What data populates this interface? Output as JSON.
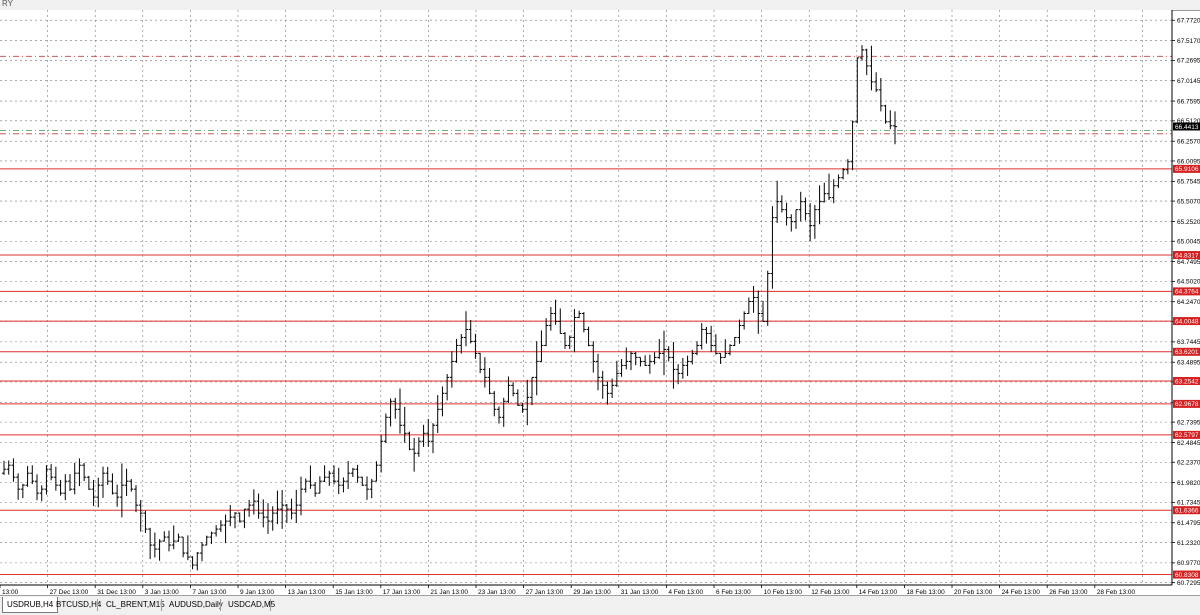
{
  "window": {
    "title_fragment": "RY"
  },
  "tabs": [
    {
      "label": "USDRUB,H4",
      "active": true
    },
    {
      "label": "BTCUSD,H4",
      "active": false
    },
    {
      "label": "CL_BRENT,M15",
      "active": false
    },
    {
      "label": "AUDUSD,Daily",
      "active": false
    },
    {
      "label": "USDCAD,M5",
      "active": false
    }
  ],
  "colors": {
    "level_line": "#e03030",
    "level_tag": "#d42020",
    "dashdot_red": "#c04040",
    "dashdot_green": "#60a060",
    "current_price_tag": "#000000",
    "bars": "#000000",
    "grid": "#777777"
  },
  "chart_data": {
    "type": "ohlc",
    "symbol": "USDRUB",
    "timeframe": "H4",
    "ylim": [
      60.7,
      67.9
    ],
    "grid": true,
    "y_ticks": [
      "67.7720",
      "67.5170",
      "67.2695",
      "67.0145",
      "66.7595",
      "66.5120",
      "66.2570",
      "66.0095",
      "65.7545",
      "65.5070",
      "65.2520",
      "65.0045",
      "64.7495",
      "64.5020",
      "64.2470",
      "63.9995",
      "63.7445",
      "63.4895",
      "63.2420",
      "62.9870",
      "62.7395",
      "62.4845",
      "62.2370",
      "61.9820",
      "61.7345",
      "61.4795",
      "61.2320",
      "60.9770",
      "60.7295"
    ],
    "x_ticks": [
      "13:00",
      "27 Dec 13:00",
      "31 Dec 13:00",
      "3 Jan 13:00",
      "7 Jan 13:00",
      "9 Jan 13:00",
      "13 Jan 13:00",
      "15 Jan 13:00",
      "17 Jan 13:00",
      "21 Jan 13:00",
      "23 Jan 13:00",
      "27 Jan 13:00",
      "29 Jan 13:00",
      "31 Jan 13:00",
      "4 Feb 13:00",
      "6 Feb 13:00",
      "10 Feb 13:00",
      "12 Feb 13:00",
      "14 Feb 13:00",
      "18 Feb 13:00",
      "20 Feb 13:00",
      "24 Feb 13:00",
      "26 Feb 13:00",
      "28 Feb 13:00"
    ],
    "current_price": "66.4413",
    "level_lines": [
      "65.9106",
      "64.8317",
      "64.3764",
      "64.0048",
      "63.6201",
      "63.2542",
      "62.9678",
      "62.5797",
      "61.6366",
      "60.8308"
    ],
    "dashdot_red_levels": [
      67.32,
      66.35
    ],
    "dashdot_green_levels": [
      66.39
    ],
    "closes": [
      62.15,
      62.2,
      62.05,
      61.9,
      61.95,
      62.1,
      62.0,
      61.85,
      61.9,
      62.15,
      62.05,
      61.95,
      61.85,
      62.0,
      61.9,
      62.1,
      62.2,
      62.05,
      61.9,
      61.8,
      61.95,
      62.1,
      62.0,
      61.85,
      61.8,
      61.95,
      62.0,
      61.9,
      61.7,
      61.6,
      61.4,
      61.2,
      61.15,
      61.25,
      61.3,
      61.2,
      61.25,
      61.3,
      61.1,
      61.05,
      60.95,
      61.1,
      61.2,
      61.3,
      61.35,
      61.4,
      61.45,
      61.5,
      61.55,
      61.6,
      61.5,
      61.65,
      61.7,
      61.75,
      61.6,
      61.55,
      61.5,
      61.6,
      61.65,
      61.7,
      61.65,
      61.6,
      61.7,
      61.9,
      62.0,
      61.95,
      61.85,
      62.0,
      62.05,
      62.1,
      62.0,
      61.95,
      62.0,
      62.1,
      62.15,
      62.05,
      61.95,
      61.9,
      62.0,
      62.2,
      62.5,
      62.8,
      63.0,
      62.9,
      62.7,
      62.6,
      62.4,
      62.35,
      62.5,
      62.6,
      62.5,
      62.7,
      62.9,
      63.1,
      63.3,
      63.5,
      63.7,
      63.8,
      63.9,
      63.75,
      63.6,
      63.4,
      63.3,
      63.1,
      62.9,
      62.8,
      63.0,
      63.2,
      63.1,
      62.95,
      62.9,
      63.05,
      63.3,
      63.5,
      63.7,
      63.95,
      64.1,
      64.0,
      63.85,
      63.7,
      63.8,
      64.05,
      64.1,
      63.9,
      63.7,
      63.5,
      63.3,
      63.2,
      63.1,
      63.2,
      63.35,
      63.45,
      63.5,
      63.6,
      63.55,
      63.5,
      63.45,
      63.5,
      63.55,
      63.6,
      63.65,
      63.55,
      63.4,
      63.35,
      63.45,
      63.5,
      63.6,
      63.7,
      63.9,
      63.85,
      63.7,
      63.6,
      63.55,
      63.6,
      63.7,
      63.8,
      63.95,
      64.1,
      64.25,
      64.3,
      64.1,
      64.0,
      64.6,
      65.3,
      65.5,
      65.4,
      65.3,
      65.25,
      65.4,
      65.5,
      65.35,
      65.2,
      65.4,
      65.5,
      65.6,
      65.55,
      65.7,
      65.8,
      65.9,
      66.0,
      66.5,
      67.3,
      67.4,
      67.2,
      67.0,
      66.9,
      66.7,
      66.5,
      66.45,
      66.44
    ]
  }
}
